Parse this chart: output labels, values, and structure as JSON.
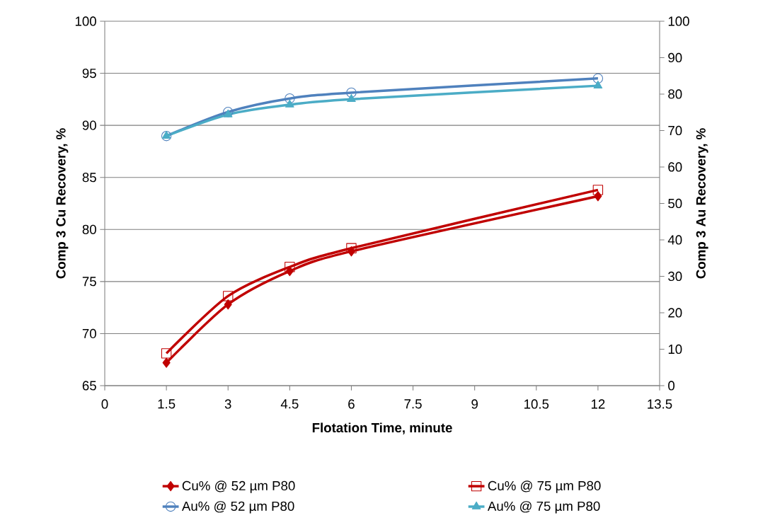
{
  "chart_data": {
    "type": "line",
    "xlabel": "Flotation Time, minute",
    "ylabel": "Comp 3 Cu Recovery, %",
    "y2label": "Comp 3  Au Recovery, %",
    "x": [
      1.5,
      3,
      4.5,
      6,
      12
    ],
    "series": [
      {
        "name": "Cu% @ 52 µm P80",
        "color": "#c00000",
        "marker": "diamond",
        "values": [
          67.2,
          72.8,
          76.0,
          77.9,
          83.2
        ]
      },
      {
        "name": "Cu% @ 75 µm P80",
        "color": "#c00000",
        "marker": "square",
        "values": [
          68.1,
          73.6,
          76.4,
          78.2,
          83.8
        ]
      },
      {
        "name": "Au% @ 52 µm P80",
        "color": "#4f81bd",
        "marker": "circle",
        "axis": "y2",
        "values": [
          68.5,
          75.1,
          78.8,
          80.4,
          84.3
        ]
      },
      {
        "name": "Au% @ 75 µm P80",
        "color": "#4bacc6",
        "marker": "triangle",
        "axis": "y2",
        "values": [
          68.5,
          74.4,
          77.1,
          78.6,
          82.3
        ]
      }
    ],
    "xlim": [
      0,
      13.5
    ],
    "xticks": [
      0,
      1.5,
      3,
      4.5,
      6,
      7.5,
      9,
      10.5,
      12,
      13.5
    ],
    "ylim": [
      65,
      100
    ],
    "yticks": [
      65,
      70,
      75,
      80,
      85,
      90,
      95,
      100
    ],
    "y2lim": [
      0,
      100
    ],
    "y2ticks": [
      0,
      10,
      20,
      30,
      40,
      50,
      60,
      70,
      80,
      90,
      100
    ],
    "grid": "y",
    "legend": "bottom"
  }
}
